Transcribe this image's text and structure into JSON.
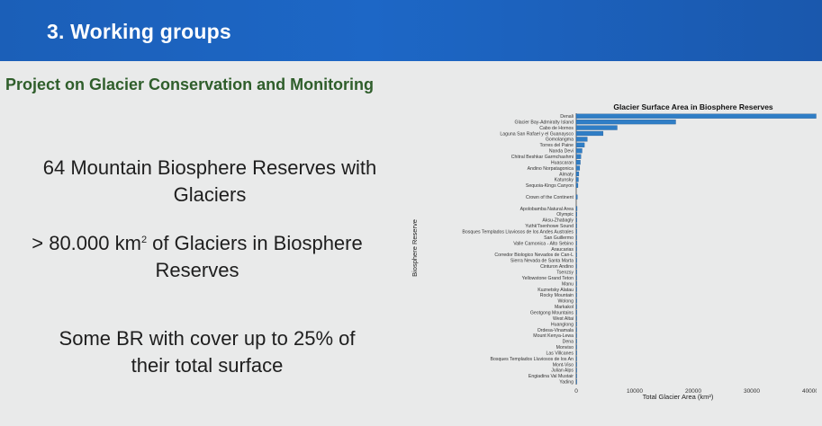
{
  "header": {
    "title": "3. Working groups",
    "band_color": "#1d63c0"
  },
  "subtitle": "Project on Glacier Conservation and Monitoring",
  "bullets": {
    "b1_line1": "64 Mountain Biosphere Reserves with",
    "b1_line2": "Glaciers",
    "b2_prefix": "> 80.000 km",
    "b2_sup": "2",
    "b2_suffix": " of Glaciers in Biosphere",
    "b2_line2": "Reserves",
    "b3_line1": "Some BR with cover up to 25% of",
    "b3_line2": "their total surface"
  },
  "chart_data": {
    "type": "bar",
    "orientation": "horizontal",
    "title": "Glacier Surface Area in Biosphere Reserves",
    "xlabel": "Total Glacier Area (km²)",
    "ylabel": "Biosphere Reserve",
    "xlim": [
      0,
      40000
    ],
    "x_ticks": [
      "0",
      "10000",
      "20000",
      "30000",
      "40000"
    ],
    "bar_color": "#2f7ec6",
    "categories": [
      "Denali",
      "Glacier Bay-Admiralty Island",
      "Cabo de Hornos",
      "Laguna San Rafael y el Guanaysco",
      "Gomolangma",
      "Torres del Paine",
      "Nanda Devi",
      "Chitral Beshkar Garmchashmi",
      "Huascaran",
      "Andino Norpatagonica",
      "Almaty",
      "Katunsky",
      "Sequoia-Kings Canyon",
      "",
      "Crown of the Continent",
      "",
      "Apolobamba Natural Area",
      "Olympic",
      "Aksu-Zhabagly",
      "Yuthk'Tsenhowe Sound",
      "Bosques Templados Lluviosos de los Andes Australes",
      "San Guillermo",
      "Valle Camonica - Alto Sebino",
      "Araucarias",
      "Corredor Biologico Nevados de Can-L",
      "Sierra Nevada de Santa Marta",
      "Cinturon Andino",
      "Tsenzsy",
      "Yellowstone Grand Teton",
      "Manu",
      "Kuznetsky Alatau",
      "Rocky Mountain",
      "Wolong",
      "Markakol",
      "Geotgong Mountains",
      "West Altai",
      "Huanglong",
      "Ordesa-Vinamala",
      "Mount Kenya-Lewa",
      "Dena",
      "Monviso",
      "Las Villcanes",
      "Bosques Templados Lluviosos de los An",
      "Mont-Viso",
      "Julian Alps",
      "Engiadina Val Mustair",
      "Yading"
    ],
    "values": [
      41000,
      17000,
      7000,
      4600,
      1900,
      1400,
      1000,
      800,
      700,
      600,
      450,
      380,
      300,
      0,
      200,
      0,
      150,
      130,
      110,
      100,
      90,
      80,
      70,
      60,
      55,
      50,
      45,
      40,
      35,
      30,
      28,
      26,
      24,
      22,
      20,
      18,
      16,
      14,
      12,
      10,
      9,
      8,
      7,
      6,
      5,
      4,
      3
    ]
  }
}
